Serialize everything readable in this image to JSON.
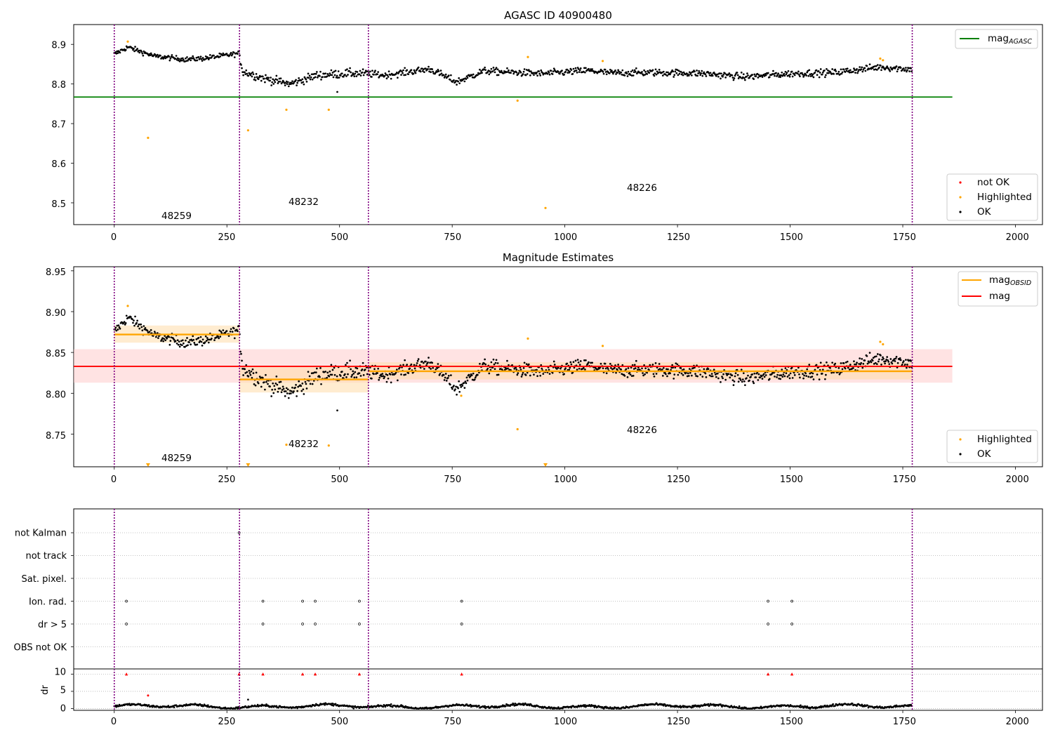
{
  "colors": {
    "agasc_line": "#008000",
    "highlighted": "#ffa500",
    "not_ok": "#ff0000",
    "ok": "#000000",
    "obs_boundary": "#800080",
    "obsid_band": "#ffdcaa",
    "mag_band": "#ffc8c8"
  },
  "chart_data": [
    {
      "type": "scatter",
      "title": "AGASC ID 40900480",
      "xlim": [
        -90,
        2060
      ],
      "ylim": [
        8.445,
        8.95
      ],
      "x_ticks": [
        "0",
        "250",
        "500",
        "750",
        "1000",
        "1250",
        "1500",
        "1750",
        "2000"
      ],
      "y_ticks": [
        "8.5",
        "8.6",
        "8.7",
        "8.8",
        "8.9"
      ],
      "obs_boundaries": [
        0,
        278,
        564,
        1771
      ],
      "obs_labels": [
        {
          "text": "48259",
          "x": 138,
          "y": 8.463
        },
        {
          "text": "48232",
          "x": 420,
          "y": 8.498
        },
        {
          "text": "48226",
          "x": 1168,
          "y": 8.533
        }
      ],
      "agasc_mag": 8.767,
      "agasc_line_x": [
        -90,
        1860
      ],
      "legend_upper": [
        {
          "label": "mag",
          "subscript": "AGASC"
        }
      ],
      "legend_lower": [
        "not OK",
        "Highlighted",
        "OK"
      ],
      "ok_trend": [
        {
          "x": 0,
          "y": 8.875
        },
        {
          "x": 30,
          "y": 8.893
        },
        {
          "x": 90,
          "y": 8.87
        },
        {
          "x": 160,
          "y": 8.862
        },
        {
          "x": 200,
          "y": 8.865
        },
        {
          "x": 277,
          "y": 8.877
        },
        {
          "x": 285,
          "y": 8.832
        },
        {
          "x": 330,
          "y": 8.815
        },
        {
          "x": 390,
          "y": 8.8
        },
        {
          "x": 450,
          "y": 8.822
        },
        {
          "x": 520,
          "y": 8.827
        },
        {
          "x": 564,
          "y": 8.826
        },
        {
          "x": 600,
          "y": 8.822
        },
        {
          "x": 700,
          "y": 8.838
        },
        {
          "x": 760,
          "y": 8.805
        },
        {
          "x": 820,
          "y": 8.833
        },
        {
          "x": 950,
          "y": 8.826
        },
        {
          "x": 1050,
          "y": 8.834
        },
        {
          "x": 1100,
          "y": 8.828
        },
        {
          "x": 1200,
          "y": 8.829
        },
        {
          "x": 1300,
          "y": 8.827
        },
        {
          "x": 1400,
          "y": 8.818
        },
        {
          "x": 1500,
          "y": 8.826
        },
        {
          "x": 1600,
          "y": 8.829
        },
        {
          "x": 1700,
          "y": 8.843
        },
        {
          "x": 1771,
          "y": 8.837
        }
      ],
      "highlighted_points": [
        {
          "x": 30,
          "y": 8.907
        },
        {
          "x": 75,
          "y": 8.664
        },
        {
          "x": 297,
          "y": 8.683
        },
        {
          "x": 382,
          "y": 8.735
        },
        {
          "x": 476,
          "y": 8.735
        },
        {
          "x": 895,
          "y": 8.758
        },
        {
          "x": 918,
          "y": 8.868
        },
        {
          "x": 957,
          "y": 8.487
        },
        {
          "x": 1084,
          "y": 8.858
        },
        {
          "x": 1700,
          "y": 8.864
        },
        {
          "x": 1706,
          "y": 8.86
        }
      ],
      "ok_outliers": [
        {
          "x": 495,
          "y": 8.78
        }
      ]
    },
    {
      "type": "scatter",
      "title": "Magnitude Estimates",
      "xlim": [
        -90,
        2060
      ],
      "ylim": [
        8.71,
        8.955
      ],
      "x_ticks": [
        "0",
        "250",
        "500",
        "750",
        "1000",
        "1250",
        "1500",
        "1750",
        "2000"
      ],
      "y_ticks": [
        "8.75",
        "8.80",
        "8.85",
        "8.90",
        "8.95"
      ],
      "obs_boundaries": [
        0,
        278,
        564,
        1771
      ],
      "obs_labels": [
        {
          "text": "48259",
          "x": 138,
          "y": 8.718
        },
        {
          "text": "48232",
          "x": 420,
          "y": 8.735
        },
        {
          "text": "48226",
          "x": 1168,
          "y": 8.753
        }
      ],
      "mag": 8.833,
      "mag_band": [
        8.813,
        8.854
      ],
      "mag_line_x": [
        -90,
        1860
      ],
      "obsid_mags": [
        {
          "x0": 0,
          "x1": 278,
          "mag": 8.872,
          "band": [
            8.862,
            8.883
          ]
        },
        {
          "x0": 278,
          "x1": 564,
          "mag": 8.817,
          "band": [
            8.801,
            8.833
          ]
        },
        {
          "x0": 564,
          "x1": 1771,
          "mag": 8.827,
          "band": [
            8.817,
            8.838
          ]
        }
      ],
      "legend_upper": [
        {
          "label": "mag",
          "subscript": "OBSID"
        },
        {
          "label": "mag",
          "subscript": ""
        }
      ],
      "legend_lower": [
        "Highlighted",
        "OK"
      ],
      "highlighted_points": [
        {
          "x": 30,
          "y": 8.907
        },
        {
          "x": 382,
          "y": 8.737
        },
        {
          "x": 476,
          "y": 8.736
        },
        {
          "x": 770,
          "y": 8.797
        },
        {
          "x": 895,
          "y": 8.756
        },
        {
          "x": 918,
          "y": 8.867
        },
        {
          "x": 1084,
          "y": 8.858
        },
        {
          "x": 1700,
          "y": 8.863
        },
        {
          "x": 1706,
          "y": 8.86
        }
      ],
      "clipped_low_markers": [
        {
          "x": 75
        },
        {
          "x": 297
        },
        {
          "x": 957
        }
      ],
      "ok_outliers": [
        {
          "x": 495,
          "y": 8.779
        }
      ]
    },
    {
      "type": "scatter",
      "title": "",
      "xlim": [
        -90,
        2060
      ],
      "x_ticks": [
        "0",
        "250",
        "500",
        "750",
        "1000",
        "1250",
        "1500",
        "1750",
        "2000"
      ],
      "flag_rows": [
        "not Kalman",
        "not track",
        "Sat. pixel.",
        "Ion. rad.",
        "dr > 5",
        "OBS not OK"
      ],
      "flag_events": [
        {
          "flag": "Ion. rad.",
          "x": [
            27,
            330,
            418,
            446,
            544,
            771,
            1451,
            1504
          ]
        },
        {
          "flag": "dr > 5",
          "x": [
            27,
            330,
            418,
            446,
            544,
            771,
            1451,
            1504
          ]
        },
        {
          "flag": "not Kalman",
          "x": [
            277
          ]
        }
      ],
      "dr_panel": {
        "ylabel": "dr",
        "ylim": [
          -0.5,
          11.5
        ],
        "y_ticks": [
          "0",
          "5",
          "10"
        ],
        "clipped_high_x": [
          27,
          277,
          330,
          418,
          446,
          544,
          771,
          1451,
          1504
        ],
        "highlighted_points": [
          {
            "x": 75,
            "y": 3.8
          }
        ],
        "ok_outliers": [
          {
            "x": 297,
            "y": 2.6
          }
        ]
      }
    }
  ]
}
